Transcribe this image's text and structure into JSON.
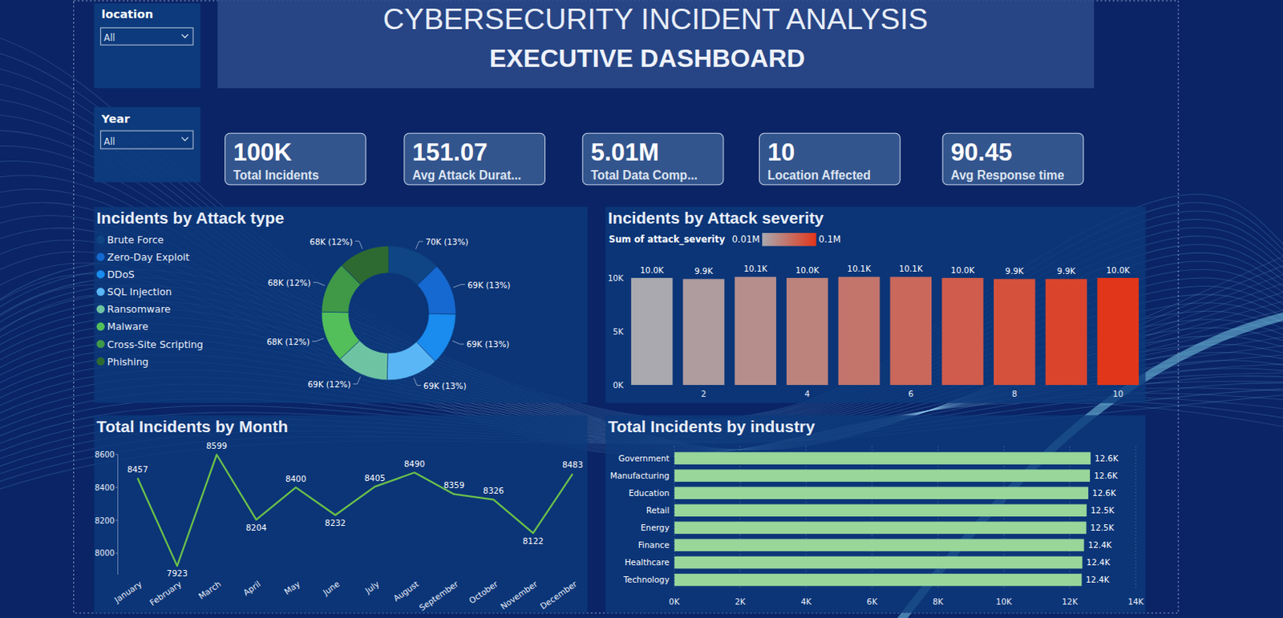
{
  "header": {
    "title": "CYBERSECURITY INCIDENT ANALYSIS",
    "subtitle": "EXECUTIVE DASHBOARD"
  },
  "filters": [
    {
      "label": "location",
      "value": "All"
    },
    {
      "label": "Year",
      "value": "All"
    }
  ],
  "kpis": [
    {
      "value": "100K",
      "label": "Total Incidents"
    },
    {
      "value": "151.07",
      "label": "Avg Attack Durat..."
    },
    {
      "value": "5.01M",
      "label": "Total Data Comp..."
    },
    {
      "value": "10",
      "label": "Location Affected"
    },
    {
      "value": "90.45",
      "label": "Avg Response time"
    }
  ],
  "chart_data": [
    {
      "type": "pie",
      "title": "Incidents by Attack type",
      "categories": [
        "Brute Force",
        "Zero-Day Exploit",
        "DDoS",
        "SQL Injection",
        "Ransomware",
        "Malware",
        "Cross-Site Scripting",
        "Phishing"
      ],
      "values": [
        70000,
        69000,
        69000,
        69000,
        69000,
        68000,
        68000,
        68000
      ],
      "value_labels": [
        "70K (13%)",
        "69K (13%)",
        "69K (13%)",
        "69K (13%)",
        "69K (12%)",
        "68K (12%)",
        "68K (12%)",
        "68K (12%)"
      ],
      "colors": [
        "#0f4585",
        "#1669d0",
        "#1a8bef",
        "#5ab6f4",
        "#6ec4a2",
        "#52bf5a",
        "#3f9947",
        "#2d6a31"
      ],
      "legend": "left",
      "data_labels": true
    },
    {
      "type": "bar",
      "title": "Incidents by Attack severity",
      "categories": [
        null,
        2,
        null,
        4,
        null,
        6,
        null,
        8,
        null,
        10
      ],
      "values": [
        10000,
        9900,
        10100,
        10000,
        10100,
        10100,
        10000,
        9900,
        9900,
        10000
      ],
      "value_labels": [
        "10.0K",
        "9.9K",
        "10.1K",
        "10.0K",
        "10.1K",
        "10.1K",
        "10.0K",
        "9.9K",
        "9.9K",
        "10.0K"
      ],
      "color_values": [
        10000,
        19800,
        30300,
        40000,
        50500,
        60600,
        70000,
        79200,
        89100,
        100000
      ],
      "colorbar": {
        "title": "Sum of attack_severity",
        "range": [
          10000,
          100000
        ],
        "ticks": [
          {
            "value": 10000,
            "label": "0.01M"
          },
          {
            "value": 100000,
            "label": "0.1M"
          }
        ]
      },
      "ylim": [
        0,
        10200
      ],
      "yticks": [
        {
          "value": 0,
          "label": "0K"
        },
        {
          "value": 5000,
          "label": "5K"
        },
        {
          "value": 10000,
          "label": "10K"
        }
      ],
      "data_labels": true,
      "grid": false
    },
    {
      "type": "line",
      "title": "Total Incidents by Month",
      "categories": [
        "January",
        "February",
        "March",
        "April",
        "May",
        "June",
        "July",
        "August",
        "September",
        "October",
        "November",
        "December"
      ],
      "values": [
        8457,
        7923,
        8599,
        8204,
        8400,
        8232,
        8405,
        8490,
        8359,
        8326,
        8122,
        8483
      ],
      "ylim": [
        7870,
        8600
      ],
      "yticks": [
        8000,
        8200,
        8400,
        8600
      ],
      "color": "#6cc04a",
      "data_labels": true,
      "grid": false
    },
    {
      "type": "bar",
      "orientation": "horizontal",
      "title": "Total Incidents by industry",
      "categories": [
        "Government",
        "Manufacturing",
        "Education",
        "Retail",
        "Energy",
        "Finance",
        "Healthcare",
        "Technology"
      ],
      "values": [
        12630,
        12610,
        12560,
        12510,
        12500,
        12430,
        12380,
        12360
      ],
      "value_labels": [
        "12.6K",
        "12.6K",
        "12.6K",
        "12.5K",
        "12.5K",
        "12.4K",
        "12.4K",
        "12.4K"
      ],
      "xlim": [
        0,
        14000
      ],
      "xticks": [
        {
          "value": 0,
          "label": "0K"
        },
        {
          "value": 2000,
          "label": "2K"
        },
        {
          "value": 4000,
          "label": "4K"
        },
        {
          "value": 6000,
          "label": "6K"
        },
        {
          "value": 8000,
          "label": "8K"
        },
        {
          "value": 10000,
          "label": "10K"
        },
        {
          "value": 12000,
          "label": "12K"
        },
        {
          "value": 14000,
          "label": "14K"
        }
      ],
      "color": "#98d69a",
      "grid": true,
      "data_labels": true
    }
  ]
}
